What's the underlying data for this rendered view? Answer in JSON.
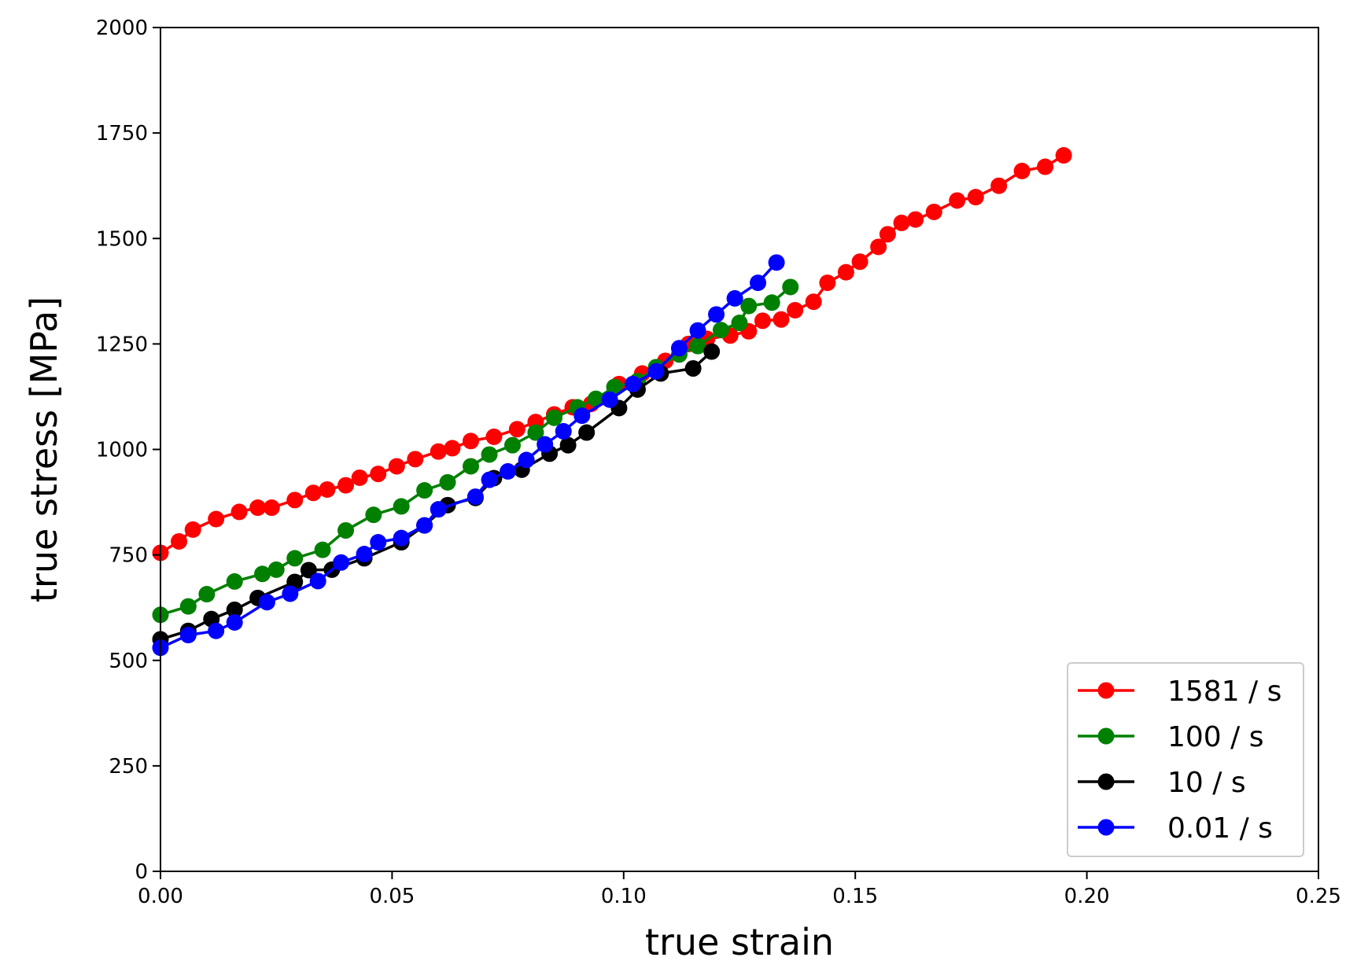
{
  "chart_data": {
    "type": "line",
    "title": "",
    "xlabel": "true strain",
    "ylabel": "true stress [MPa]",
    "xlim": [
      0.0,
      0.25
    ],
    "ylim": [
      0,
      2000
    ],
    "xticks": [
      0.0,
      0.05,
      0.1,
      0.15,
      0.2,
      0.25
    ],
    "xtick_labels": [
      "0.00",
      "0.05",
      "0.10",
      "0.15",
      "0.20",
      "0.25"
    ],
    "yticks": [
      0,
      250,
      500,
      750,
      1000,
      1250,
      1500,
      1750,
      2000
    ],
    "ytick_labels": [
      "0",
      "250",
      "500",
      "750",
      "1000",
      "1250",
      "1500",
      "1750",
      "2000"
    ],
    "grid": false,
    "legend_position": "lower-right",
    "series": [
      {
        "name": "1581 / s",
        "color": "#ff0000",
        "points": [
          [
            0.0,
            755
          ],
          [
            0.004,
            782
          ],
          [
            0.007,
            810
          ],
          [
            0.012,
            835
          ],
          [
            0.017,
            852
          ],
          [
            0.021,
            862
          ],
          [
            0.024,
            862
          ],
          [
            0.029,
            880
          ],
          [
            0.033,
            897
          ],
          [
            0.036,
            905
          ],
          [
            0.04,
            915
          ],
          [
            0.043,
            933
          ],
          [
            0.047,
            942
          ],
          [
            0.051,
            960
          ],
          [
            0.055,
            977
          ],
          [
            0.06,
            995
          ],
          [
            0.063,
            1003
          ],
          [
            0.067,
            1020
          ],
          [
            0.072,
            1030
          ],
          [
            0.077,
            1048
          ],
          [
            0.081,
            1065
          ],
          [
            0.085,
            1083
          ],
          [
            0.089,
            1100
          ],
          [
            0.093,
            1108
          ],
          [
            0.099,
            1155
          ],
          [
            0.104,
            1180
          ],
          [
            0.109,
            1210
          ],
          [
            0.114,
            1250
          ],
          [
            0.118,
            1262
          ],
          [
            0.123,
            1270
          ],
          [
            0.127,
            1280
          ],
          [
            0.13,
            1305
          ],
          [
            0.134,
            1308
          ],
          [
            0.137,
            1330
          ],
          [
            0.141,
            1350
          ],
          [
            0.144,
            1395
          ],
          [
            0.148,
            1420
          ],
          [
            0.151,
            1445
          ],
          [
            0.155,
            1480
          ],
          [
            0.157,
            1510
          ],
          [
            0.16,
            1537
          ],
          [
            0.163,
            1545
          ],
          [
            0.167,
            1563
          ],
          [
            0.172,
            1590
          ],
          [
            0.176,
            1598
          ],
          [
            0.181,
            1625
          ],
          [
            0.186,
            1660
          ],
          [
            0.191,
            1670
          ],
          [
            0.195,
            1697
          ]
        ]
      },
      {
        "name": "100 / s",
        "color": "#008000",
        "points": [
          [
            0.0,
            608
          ],
          [
            0.006,
            628
          ],
          [
            0.01,
            657
          ],
          [
            0.016,
            687
          ],
          [
            0.022,
            705
          ],
          [
            0.025,
            715
          ],
          [
            0.029,
            742
          ],
          [
            0.035,
            762
          ],
          [
            0.04,
            808
          ],
          [
            0.046,
            845
          ],
          [
            0.052,
            865
          ],
          [
            0.057,
            903
          ],
          [
            0.062,
            922
          ],
          [
            0.067,
            960
          ],
          [
            0.071,
            988
          ],
          [
            0.076,
            1010
          ],
          [
            0.081,
            1040
          ],
          [
            0.085,
            1075
          ],
          [
            0.09,
            1100
          ],
          [
            0.094,
            1120
          ],
          [
            0.098,
            1148
          ],
          [
            0.103,
            1162
          ],
          [
            0.107,
            1195
          ],
          [
            0.112,
            1225
          ],
          [
            0.116,
            1245
          ],
          [
            0.121,
            1283
          ],
          [
            0.125,
            1300
          ],
          [
            0.127,
            1340
          ],
          [
            0.132,
            1348
          ],
          [
            0.136,
            1385
          ]
        ]
      },
      {
        "name": "10 / s",
        "color": "#000000",
        "points": [
          [
            0.0,
            550
          ],
          [
            0.006,
            570
          ],
          [
            0.011,
            598
          ],
          [
            0.016,
            620
          ],
          [
            0.021,
            648
          ],
          [
            0.029,
            686
          ],
          [
            0.032,
            714
          ],
          [
            0.037,
            715
          ],
          [
            0.044,
            742
          ],
          [
            0.052,
            780
          ],
          [
            0.057,
            820
          ],
          [
            0.062,
            868
          ],
          [
            0.068,
            885
          ],
          [
            0.072,
            932
          ],
          [
            0.078,
            952
          ],
          [
            0.084,
            990
          ],
          [
            0.088,
            1010
          ],
          [
            0.092,
            1040
          ],
          [
            0.099,
            1098
          ],
          [
            0.103,
            1142
          ],
          [
            0.108,
            1180
          ],
          [
            0.115,
            1192
          ],
          [
            0.119,
            1232
          ]
        ]
      },
      {
        "name": "0.01 / s",
        "color": "#0000ff",
        "points": [
          [
            0.0,
            530
          ],
          [
            0.006,
            560
          ],
          [
            0.012,
            570
          ],
          [
            0.016,
            590
          ],
          [
            0.023,
            638
          ],
          [
            0.028,
            658
          ],
          [
            0.034,
            688
          ],
          [
            0.039,
            732
          ],
          [
            0.044,
            752
          ],
          [
            0.047,
            780
          ],
          [
            0.052,
            790
          ],
          [
            0.057,
            820
          ],
          [
            0.06,
            858
          ],
          [
            0.068,
            888
          ],
          [
            0.071,
            928
          ],
          [
            0.075,
            948
          ],
          [
            0.079,
            975
          ],
          [
            0.083,
            1012
          ],
          [
            0.087,
            1043
          ],
          [
            0.091,
            1080
          ],
          [
            0.097,
            1118
          ],
          [
            0.102,
            1155
          ],
          [
            0.107,
            1185
          ],
          [
            0.112,
            1240
          ],
          [
            0.116,
            1282
          ],
          [
            0.12,
            1320
          ],
          [
            0.124,
            1358
          ],
          [
            0.129,
            1395
          ],
          [
            0.133,
            1443
          ]
        ]
      }
    ]
  }
}
